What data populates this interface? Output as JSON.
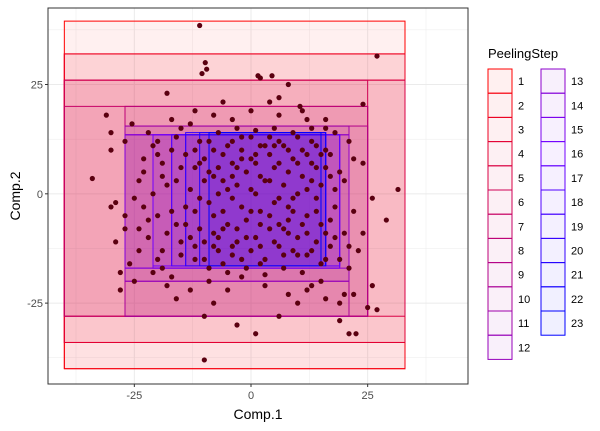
{
  "chart_data": {
    "type": "scatter",
    "xlabel": "Comp.1",
    "ylabel": "Comp.2",
    "xlim": [
      -43.5,
      46.5
    ],
    "ylim": [
      -43.5,
      42.5
    ],
    "x_ticks": [
      -25,
      0,
      25
    ],
    "y_ticks": [
      -25,
      0,
      25
    ],
    "x_tick_labels": [
      "-25",
      "0",
      "25"
    ],
    "y_tick_labels": [
      "-25",
      "0",
      "25"
    ],
    "grid": true,
    "legend": {
      "title": "PeelingStep",
      "placement": "right",
      "entries": [
        {
          "label": "1",
          "color": "#ff0000"
        },
        {
          "label": "2",
          "color": "#f50011"
        },
        {
          "label": "3",
          "color": "#ec0022"
        },
        {
          "label": "4",
          "color": "#e20033"
        },
        {
          "label": "5",
          "color": "#d90044"
        },
        {
          "label": "6",
          "color": "#cf0055"
        },
        {
          "label": "7",
          "color": "#c60066"
        },
        {
          "label": "8",
          "color": "#bc0077"
        },
        {
          "label": "9",
          "color": "#b20088"
        },
        {
          "label": "10",
          "color": "#a90099"
        },
        {
          "label": "11",
          "color": "#9f00aa"
        },
        {
          "label": "12",
          "color": "#9600bb"
        },
        {
          "label": "13",
          "color": "#8c00cc"
        },
        {
          "label": "14",
          "color": "#8300dd"
        },
        {
          "label": "15",
          "color": "#7900ee"
        },
        {
          "label": "16",
          "color": "#7000ff"
        },
        {
          "label": "17",
          "color": "#6000ff"
        },
        {
          "label": "18",
          "color": "#5000ff"
        },
        {
          "label": "19",
          "color": "#4000ff"
        },
        {
          "label": "20",
          "color": "#3000ff"
        },
        {
          "label": "21",
          "color": "#2000ff"
        },
        {
          "label": "22",
          "color": "#1000ff"
        },
        {
          "label": "23",
          "color": "#0000ff"
        }
      ]
    },
    "rectangles": [
      {
        "step": "1",
        "xmin": -40,
        "xmax": 33,
        "ymin": -40,
        "ymax": 39.5
      },
      {
        "step": "2",
        "xmin": -40,
        "xmax": 33,
        "ymin": -40,
        "ymax": 32
      },
      {
        "step": "3",
        "xmin": -40,
        "xmax": 33,
        "ymin": -34,
        "ymax": 32
      },
      {
        "step": "4",
        "xmin": -40,
        "xmax": 33,
        "ymin": -34,
        "ymax": 26
      },
      {
        "step": "5",
        "xmin": -40,
        "xmax": 33,
        "ymin": -28,
        "ymax": 26
      },
      {
        "step": "6",
        "xmin": -40,
        "xmax": 25,
        "ymin": -28,
        "ymax": 26
      },
      {
        "step": "7",
        "xmin": -40,
        "xmax": 25,
        "ymin": -28,
        "ymax": 20
      },
      {
        "step": "8",
        "xmin": -27,
        "xmax": 25,
        "ymin": -28,
        "ymax": 20
      },
      {
        "step": "9",
        "xmin": -27,
        "xmax": 25,
        "ymin": -28,
        "ymax": 15.5
      },
      {
        "step": "10",
        "xmin": -27,
        "xmax": 21,
        "ymin": -28,
        "ymax": 15.5
      },
      {
        "step": "11",
        "xmin": -27,
        "xmax": 21,
        "ymin": -20,
        "ymax": 15.5
      },
      {
        "step": "12",
        "xmin": -27,
        "xmax": 21,
        "ymin": -20,
        "ymax": 13.5
      },
      {
        "step": "13",
        "xmin": -27,
        "xmax": 21,
        "ymin": -17,
        "ymax": 13.5
      },
      {
        "step": "14",
        "xmin": -27,
        "xmax": 19,
        "ymin": -17,
        "ymax": 13.5
      },
      {
        "step": "15",
        "xmin": -21,
        "xmax": 19,
        "ymin": -17,
        "ymax": 13.5
      },
      {
        "step": "16",
        "xmin": -21,
        "xmax": 19,
        "ymin": -16.5,
        "ymax": 13.5
      },
      {
        "step": "17",
        "xmin": -17,
        "xmax": 19,
        "ymin": -16.5,
        "ymax": 13.5
      },
      {
        "step": "18",
        "xmin": -17,
        "xmax": 16,
        "ymin": -16.5,
        "ymax": 13.5
      },
      {
        "step": "19",
        "xmin": -14,
        "xmax": 16,
        "ymin": -16.5,
        "ymax": 13.5
      },
      {
        "step": "20",
        "xmin": -14,
        "xmax": 16,
        "ymin": -16.5,
        "ymax": 14
      },
      {
        "step": "21",
        "xmin": -11,
        "xmax": 16,
        "ymin": -16.5,
        "ymax": 14
      },
      {
        "step": "22",
        "xmin": -9,
        "xmax": 16,
        "ymin": -16.5,
        "ymax": 14
      },
      {
        "step": "23",
        "xmin": -9,
        "xmax": 15,
        "ymin": -16.5,
        "ymax": 14
      }
    ],
    "points": [
      [
        -11,
        38.5
      ],
      [
        -10.5,
        27.5
      ],
      [
        -9.5,
        28.5
      ],
      [
        -9.8,
        30
      ],
      [
        1.5,
        27
      ],
      [
        2,
        26.5
      ],
      [
        4.5,
        27
      ],
      [
        8,
        25
      ],
      [
        4,
        21
      ],
      [
        6,
        22
      ],
      [
        10.5,
        20
      ],
      [
        11,
        19
      ],
      [
        -25.5,
        16
      ],
      [
        -18,
        23
      ],
      [
        -12,
        19
      ],
      [
        -8,
        18
      ],
      [
        -6,
        21
      ],
      [
        -4,
        17
      ],
      [
        12,
        17
      ],
      [
        16,
        15
      ],
      [
        -31,
        18
      ],
      [
        -30,
        10
      ],
      [
        -34,
        3.5
      ],
      [
        -29,
        -2
      ],
      [
        -30,
        -3
      ],
      [
        -27,
        -8
      ],
      [
        -28,
        -18
      ],
      [
        -29,
        -11
      ],
      [
        24,
        20.5
      ],
      [
        27,
        31.5
      ],
      [
        24,
        7
      ],
      [
        22,
        -4
      ],
      [
        24,
        -9
      ],
      [
        21,
        -17
      ],
      [
        20,
        -23
      ],
      [
        26,
        -1
      ],
      [
        29,
        -6
      ],
      [
        31.5,
        1
      ],
      [
        25,
        -26
      ],
      [
        27,
        -26.5
      ],
      [
        26,
        -21
      ],
      [
        22,
        -23
      ],
      [
        19,
        -25
      ],
      [
        -18,
        -21
      ],
      [
        -16,
        -24
      ],
      [
        -13,
        -22
      ],
      [
        -8,
        -25
      ],
      [
        -5,
        -22
      ],
      [
        -2,
        -19
      ],
      [
        3,
        -21
      ],
      [
        8,
        -23
      ],
      [
        10,
        -25
      ],
      [
        12,
        -22
      ],
      [
        15,
        -20
      ],
      [
        16,
        -24
      ],
      [
        19,
        -29
      ],
      [
        21,
        -32
      ],
      [
        -10,
        -28
      ],
      [
        -3,
        -30
      ],
      [
        1,
        -32
      ],
      [
        6,
        -28
      ],
      [
        -10,
        -38
      ],
      [
        22.5,
        -32
      ],
      [
        -20,
        -15
      ],
      [
        -22,
        -10
      ],
      [
        -20,
        -5
      ],
      [
        -23,
        5
      ],
      [
        -21,
        11
      ],
      [
        -19,
        -13
      ],
      [
        -17,
        10
      ],
      [
        -14,
        -3
      ],
      [
        -15,
        6
      ],
      [
        -12,
        10
      ],
      [
        -11,
        -8
      ],
      [
        -10,
        3
      ],
      [
        -9,
        12
      ],
      [
        -8,
        -12
      ],
      [
        -7,
        6
      ],
      [
        -6,
        -4
      ],
      [
        -5,
        11
      ],
      [
        -4,
        -14
      ],
      [
        -3,
        2
      ],
      [
        -2,
        8
      ],
      [
        -1,
        -6
      ],
      [
        0,
        13
      ],
      [
        1,
        -10
      ],
      [
        2,
        4
      ],
      [
        3,
        -15
      ],
      [
        4,
        9
      ],
      [
        5,
        -2
      ],
      [
        6,
        12
      ],
      [
        7,
        -8
      ],
      [
        8,
        5
      ],
      [
        9,
        -13
      ],
      [
        10,
        0
      ],
      [
        11,
        10
      ],
      [
        12,
        -5
      ],
      [
        13,
        7
      ],
      [
        14,
        -11
      ],
      [
        15,
        2
      ],
      [
        16,
        -15
      ],
      [
        17,
        9
      ],
      [
        18,
        -3
      ],
      [
        19,
        5
      ],
      [
        20,
        -9
      ],
      [
        -25,
        -1
      ],
      [
        -24,
        -13
      ],
      [
        -23,
        8
      ],
      [
        -22,
        -6
      ],
      [
        -21,
        0
      ],
      [
        -19,
        4
      ],
      [
        -18,
        -9
      ],
      [
        -16,
        13
      ],
      [
        -15,
        -14
      ],
      [
        -13,
        1
      ],
      [
        -12,
        -12
      ],
      [
        -11,
        7
      ],
      [
        -9,
        -2
      ],
      [
        -8,
        10
      ],
      [
        -7,
        -10
      ],
      [
        -6,
        3
      ],
      [
        -5,
        -7
      ],
      [
        -4,
        12
      ],
      [
        -3,
        -11
      ],
      [
        -2,
        -3
      ],
      [
        -1,
        5
      ],
      [
        0,
        -13
      ],
      [
        1,
        9
      ],
      [
        2,
        -4
      ],
      [
        3,
        11
      ],
      [
        4,
        -8
      ],
      [
        5,
        6
      ],
      [
        6,
        -12
      ],
      [
        7,
        2
      ],
      [
        8,
        -6
      ],
      [
        9,
        8
      ],
      [
        10,
        -14
      ],
      [
        11,
        4
      ],
      [
        12,
        -9
      ],
      [
        13,
        12
      ],
      [
        14,
        -1
      ],
      [
        15,
        -7
      ],
      [
        16,
        10
      ],
      [
        17,
        -12
      ],
      [
        18,
        1
      ],
      [
        -26,
        -16
      ],
      [
        -20,
        12
      ],
      [
        -14,
        9
      ],
      [
        -10,
        -15
      ],
      [
        -6,
        -16
      ],
      [
        -2,
        13
      ],
      [
        2,
        -16
      ],
      [
        6,
        -1
      ],
      [
        10,
        13
      ],
      [
        14,
        6
      ],
      [
        -12,
        -4
      ],
      [
        -8,
        4
      ],
      [
        -4,
        -1
      ],
      [
        0,
        1
      ],
      [
        4,
        -5
      ],
      [
        8,
        -9
      ],
      [
        -16,
        -7
      ],
      [
        -18,
        2
      ],
      [
        -24,
        3
      ],
      [
        -27,
        -5
      ],
      [
        20,
        3
      ],
      [
        22,
        8
      ],
      [
        23,
        -13
      ],
      [
        -7,
        14
      ],
      [
        -3,
        15
      ],
      [
        1,
        14.5
      ],
      [
        5,
        15
      ],
      [
        9,
        14
      ],
      [
        13,
        15
      ],
      [
        -9,
        -17
      ],
      [
        -5,
        -18
      ],
      [
        -1,
        -17
      ],
      [
        3,
        -18.5
      ],
      [
        7,
        -17
      ],
      [
        11,
        -18
      ],
      [
        15,
        -16
      ],
      [
        -21,
        -18
      ],
      [
        -17,
        17
      ],
      [
        -13,
        16
      ],
      [
        -9,
        -20
      ],
      [
        0,
        19
      ],
      [
        6,
        18
      ],
      [
        13,
        -21
      ],
      [
        18,
        14
      ],
      [
        -27,
        12
      ],
      [
        -25,
        -20
      ],
      [
        19,
        -15
      ],
      [
        21,
        12
      ],
      [
        -19,
        -17
      ],
      [
        -15,
        15
      ],
      [
        -11,
        12
      ],
      [
        -7,
        0
      ],
      [
        -3,
        -8
      ],
      [
        1,
        7
      ],
      [
        5,
        -11
      ],
      [
        9,
        -4
      ],
      [
        13,
        3
      ],
      [
        17,
        -6
      ],
      [
        -23,
        -3
      ],
      [
        -19,
        7
      ],
      [
        -15,
        -11
      ],
      [
        -11,
        -1
      ],
      [
        -7,
        -13
      ],
      [
        -3,
        6
      ],
      [
        1,
        0
      ],
      [
        5,
        11
      ],
      [
        9,
        -1
      ],
      [
        13,
        -13
      ],
      [
        17,
        4
      ],
      [
        -10,
        8
      ],
      [
        -6,
        -8
      ],
      [
        -2,
        10
      ],
      [
        2,
        -12
      ],
      [
        6,
        7
      ],
      [
        10,
        -10
      ],
      [
        14,
        11
      ],
      [
        -14,
        -7
      ],
      [
        -8,
        -5
      ],
      [
        -4,
        4
      ],
      [
        0,
        -4
      ],
      [
        4,
        3
      ],
      [
        8,
        -3
      ],
      [
        12,
        1
      ],
      [
        16,
        -9
      ],
      [
        -16,
        3
      ],
      [
        -12,
        6
      ],
      [
        -8,
        -9
      ],
      [
        -4,
        -12
      ],
      [
        0,
        8
      ],
      [
        4,
        13
      ],
      [
        8,
        10
      ],
      [
        12,
        -14
      ],
      [
        16,
        6
      ],
      [
        -12,
        -15
      ],
      [
        -6,
        9
      ],
      [
        -2,
        -15
      ],
      [
        2,
        11
      ],
      [
        6,
        -7
      ],
      [
        10,
        7
      ],
      [
        14,
        -4
      ],
      [
        18,
        -10
      ],
      [
        -20,
        9
      ],
      [
        -17,
        -4
      ],
      [
        -13,
        -10
      ],
      [
        -9,
        5
      ],
      [
        -5,
        1
      ],
      [
        -1,
        -10
      ],
      [
        3,
        3
      ],
      [
        7,
        11
      ],
      [
        11,
        -7
      ],
      [
        15,
        9
      ],
      [
        -10,
        -11
      ],
      [
        -4,
        7
      ],
      [
        2,
        -7
      ],
      [
        7,
        -14
      ],
      [
        12,
        9
      ],
      [
        -24,
        -8
      ],
      [
        -22,
        14
      ],
      [
        21,
        -12
      ],
      [
        -28,
        -22
      ],
      [
        -17,
        -19
      ],
      [
        16,
        17
      ],
      [
        -30,
        14
      ]
    ]
  }
}
